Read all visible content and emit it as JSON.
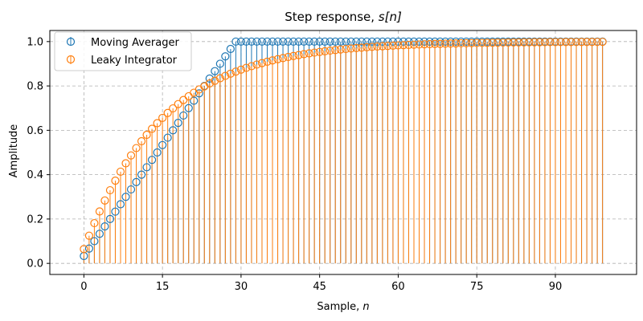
{
  "chart_data": {
    "type": "stem",
    "title": "Step response, s[n]",
    "title_math": "s[n]",
    "title_prefix": "Step response, ",
    "xlabel_prefix": "Sample, ",
    "xlabel_math": "n",
    "ylabel": "Amplitude",
    "xlim": [
      -6.5,
      105.5
    ],
    "ylim": [
      -0.05,
      1.05
    ],
    "xticks": [
      0,
      15,
      30,
      45,
      60,
      75,
      90
    ],
    "yticks": [
      0.0,
      0.2,
      0.4,
      0.6,
      0.8,
      1.0
    ],
    "ytick_labels": [
      "0.0",
      "0.2",
      "0.4",
      "0.6",
      "0.8",
      "1.0"
    ],
    "grid": true,
    "legend_position": "top-left",
    "x_range": [
      0,
      99
    ],
    "series": [
      {
        "name": "Moving Averager",
        "color": "#1f77b4",
        "description_of_values": "linear ramp (n+1)/30 for n = 0..29, then 1.0 for n = 30..99",
        "ramp_length": 30
      },
      {
        "name": "Leaky Integrator",
        "color": "#ff7f0e",
        "description_of_values": "1 - 0.9355^(n+1) for n = 0..99",
        "pole": 0.9355
      }
    ]
  }
}
